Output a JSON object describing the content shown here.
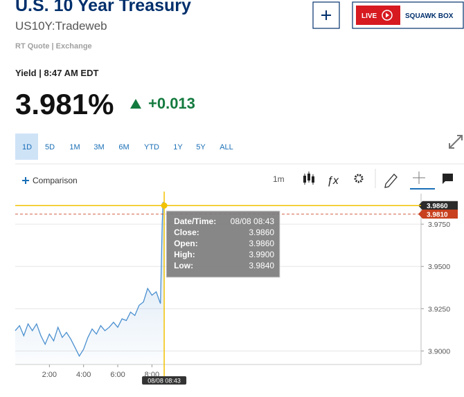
{
  "header": {
    "title": "U.S. 10 Year Treasury",
    "symbol": "US10Y:Tradeweb",
    "source": "RT Quote | Exchange",
    "live": "LIVE",
    "squawk": "SQUAWK BOX"
  },
  "quote": {
    "time": "Yield | 8:47 AM EDT",
    "price": "3.981%",
    "change": "+0.013"
  },
  "ranges": [
    "1D",
    "5D",
    "1M",
    "3M",
    "6M",
    "YTD",
    "1Y",
    "5Y",
    "ALL"
  ],
  "toolbar": {
    "comparison": "Comparison",
    "interval": "1m"
  },
  "tooltip": [
    [
      "Date/Time:",
      "08/08 08:43"
    ],
    [
      "Close:",
      "3.9860"
    ],
    [
      "Open:",
      "3.9860"
    ],
    [
      "High:",
      "3.9900"
    ],
    [
      "Low:",
      "3.9840"
    ]
  ],
  "chart_data": {
    "type": "line",
    "x": [
      0,
      0.25,
      0.5,
      0.75,
      1,
      1.25,
      1.5,
      1.75,
      2,
      2.25,
      2.5,
      2.75,
      3,
      3.25,
      3.5,
      3.75,
      4,
      4.25,
      4.5,
      4.75,
      5,
      5.25,
      5.5,
      5.75,
      6,
      6.25,
      6.5,
      6.75,
      7,
      7.25,
      7.5,
      7.75,
      8,
      8.25,
      8.5,
      8.6,
      8.65,
      8.717
    ],
    "series": [
      {
        "color": "#4a8fcf",
        "values": [
          3.912,
          3.915,
          3.909,
          3.916,
          3.912,
          3.916,
          3.909,
          3.904,
          3.91,
          3.906,
          3.914,
          3.908,
          3.911,
          3.907,
          3.902,
          3.897,
          3.901,
          3.908,
          3.913,
          3.91,
          3.915,
          3.912,
          3.914,
          3.917,
          3.914,
          3.919,
          3.918,
          3.923,
          3.921,
          3.927,
          3.929,
          3.937,
          3.933,
          3.935,
          3.928,
          3.975,
          3.988,
          3.986
        ]
      }
    ],
    "xlim": [
      0,
      23.75
    ],
    "ylim": [
      3.892,
      3.991
    ],
    "xticks": [
      {
        "value": 2,
        "label": "2:00"
      },
      {
        "value": 4,
        "label": "4:00"
      },
      {
        "value": 6,
        "label": "6:00"
      },
      {
        "value": 8,
        "label": "8:00"
      }
    ],
    "yticks": [
      {
        "value": 3.9,
        "label": "3.9000"
      },
      {
        "value": 3.925,
        "label": "3.9250"
      },
      {
        "value": 3.95,
        "label": "3.9500"
      },
      {
        "value": 3.975,
        "label": "3.9750"
      }
    ],
    "grid": true,
    "price_tags": [
      {
        "value": 3.986,
        "label": "3.9860",
        "color": "#2b2b2b"
      },
      {
        "value": 3.981,
        "label": "3.9810",
        "color": "#c8401e"
      }
    ],
    "crosshair": {
      "x": {
        "value": 8.717,
        "label": "08/08 08:43"
      },
      "y": 3.986,
      "color": "#f2c200"
    }
  }
}
